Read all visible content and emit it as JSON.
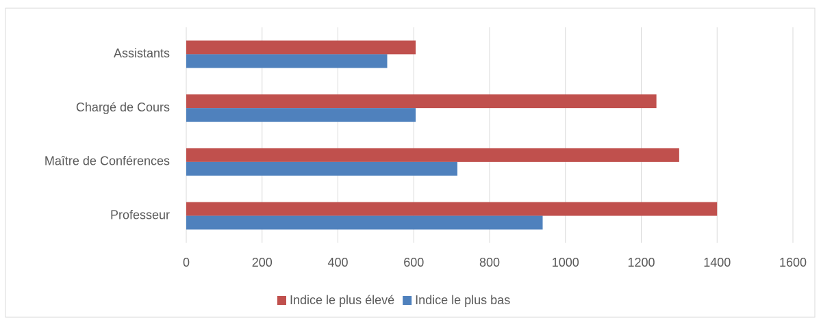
{
  "chart_data": {
    "type": "barh",
    "categories": [
      "Assistants",
      "Chargé de Cours",
      "Maître de Conférences",
      "Professeur"
    ],
    "series": [
      {
        "name": "Indice le plus élevé",
        "color": "#c0504d",
        "values": [
          605,
          1240,
          1300,
          1400
        ]
      },
      {
        "name": "Indice le plus bas",
        "color": "#4f81bd",
        "values": [
          530,
          605,
          715,
          940
        ]
      }
    ],
    "xlim": [
      0,
      1600
    ],
    "xticks": [
      0,
      200,
      400,
      600,
      800,
      1000,
      1200,
      1400,
      1600
    ],
    "grid": true
  }
}
